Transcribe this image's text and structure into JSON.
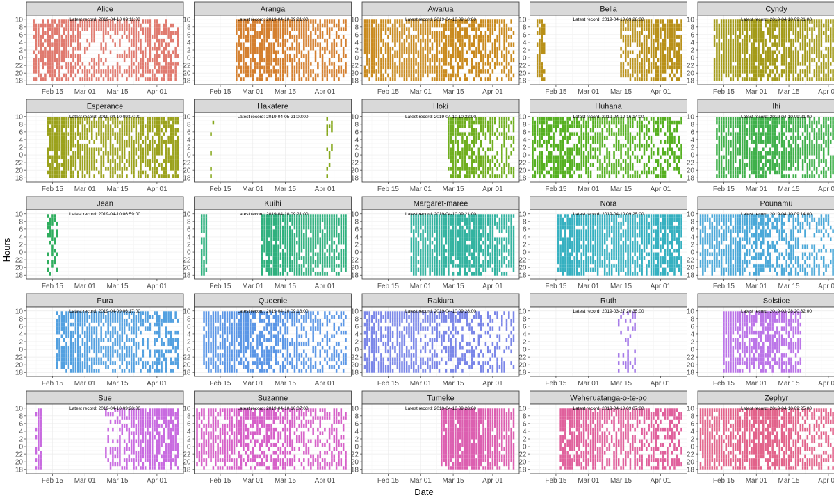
{
  "chart_data": {
    "type": "heatmap",
    "title": "",
    "xlabel": "Date",
    "ylabel": "Hours",
    "x_ticks": [
      "Feb 15",
      "Mar 01",
      "Mar 15",
      "Apr 01"
    ],
    "x_range": [
      "2019-02-05",
      "2019-04-11"
    ],
    "y_ticks": [
      "10",
      "8",
      "6",
      "4",
      "2",
      "0",
      "22",
      "20",
      "18"
    ],
    "y_range_hours_since_18": [
      -0.5,
      16.5
    ],
    "record_prefix": "Latest record: ",
    "birds": [
      {
        "name": "Alice",
        "latest": "2019-04-10 09:11:00",
        "color": "#e07a6f",
        "active": [
          [
            2,
            64
          ]
        ],
        "pattern": [
          [
            0,
            0.75
          ],
          [
            1,
            0.9
          ],
          [
            0,
            0.65
          ]
        ]
      },
      {
        "name": "Aranga",
        "latest": "2019-04-10 09:21:00",
        "color": "#d47f2e",
        "active": [
          [
            17,
            64
          ]
        ],
        "pattern": [
          [
            0.05,
            0.75
          ],
          [
            0.35,
            0.9
          ],
          [
            0.4,
            0.7
          ]
        ]
      },
      {
        "name": "Awarua",
        "latest": "2019-04-10 09:18:00",
        "color": "#c98a1e",
        "active": [
          [
            0,
            64
          ]
        ],
        "pattern": [
          [
            0.05,
            0.85
          ],
          [
            0.1,
            0.85
          ],
          [
            0.2,
            0.7
          ]
        ]
      },
      {
        "name": "Bella",
        "latest": "2019-04-10 09:28:00",
        "color": "#b89018",
        "active": [
          [
            2,
            5
          ],
          [
            38,
            64
          ]
        ],
        "pattern": [
          [
            0.4,
            0.9
          ],
          [
            0.2,
            0.9
          ],
          [
            0.1,
            0.85
          ]
        ]
      },
      {
        "name": "Cyndy",
        "latest": "2019-04-10 09:21:00",
        "color": "#a39a18",
        "active": [
          [
            6,
            64
          ]
        ],
        "pattern": [
          [
            0.1,
            0.9
          ],
          [
            0.15,
            0.85
          ],
          [
            0.2,
            0.75
          ]
        ]
      },
      {
        "name": "Esperance",
        "latest": "2019-04-10 09:04:00",
        "color": "#9ba21c",
        "active": [
          [
            8,
            64
          ]
        ],
        "pattern": [
          [
            0.1,
            0.9
          ],
          [
            0.15,
            0.85
          ],
          [
            0.1,
            0.8
          ]
        ]
      },
      {
        "name": "Hakatere",
        "latest": "2019-04-05 21:00:00",
        "color": "#86a81c",
        "active": [
          [
            6,
            7
          ],
          [
            56,
            58
          ]
        ],
        "pattern": [
          [
            0.6,
            0.5
          ],
          [
            0.6,
            0.5
          ],
          [
            0.6,
            0.5
          ]
        ]
      },
      {
        "name": "Hoki",
        "latest": "2019-04-10 10:32:00",
        "color": "#6fae1e",
        "active": [
          [
            36,
            64
          ]
        ],
        "pattern": [
          [
            0.25,
            0.85
          ],
          [
            0.55,
            0.85
          ],
          [
            0.6,
            0.7
          ]
        ]
      },
      {
        "name": "Huhana",
        "latest": "2019-04-10 16:14:00",
        "color": "#55b020",
        "active": [
          [
            0,
            64
          ]
        ],
        "pattern": [
          [
            0.1,
            0.75
          ],
          [
            0.35,
            0.8
          ],
          [
            0.4,
            0.7
          ]
        ]
      },
      {
        "name": "Ihi",
        "latest": "2019-04-10 09:21:00",
        "color": "#3fb04a",
        "active": [
          [
            7,
            64
          ]
        ],
        "pattern": [
          [
            0.1,
            0.9
          ],
          [
            0.15,
            0.85
          ],
          [
            0.25,
            0.7
          ]
        ]
      },
      {
        "name": "Jean",
        "latest": "2019-04-10 06:59:00",
        "color": "#2fae5e",
        "active": [
          [
            8,
            12
          ]
        ],
        "pattern": [
          [
            0.3,
            0.6
          ],
          [
            0.35,
            0.6
          ],
          [
            0.35,
            0.6
          ]
        ]
      },
      {
        "name": "Kuihi",
        "latest": "2019-04-10 09:21:00",
        "color": "#2fb07e",
        "active": [
          [
            2,
            4
          ],
          [
            28,
            64
          ]
        ],
        "pattern": [
          [
            0.1,
            0.95
          ],
          [
            0.1,
            0.9
          ],
          [
            0.15,
            0.85
          ]
        ]
      },
      {
        "name": "Margaret-maree",
        "latest": "2019-04-10 09:21:00",
        "color": "#33b3a0",
        "active": [
          [
            20,
            64
          ]
        ],
        "pattern": [
          [
            0.05,
            0.9
          ],
          [
            0.1,
            0.9
          ],
          [
            0.1,
            0.85
          ]
        ]
      },
      {
        "name": "Nora",
        "latest": "2019-04-10 09:25:00",
        "color": "#35b0c0",
        "active": [
          [
            11,
            64
          ]
        ],
        "pattern": [
          [
            0.05,
            0.9
          ],
          [
            0.1,
            0.85
          ],
          [
            0.1,
            0.85
          ]
        ]
      },
      {
        "name": "Pounamu",
        "latest": "2019-04-10 09:14:00",
        "color": "#4aa8d8",
        "active": [
          [
            0,
            64
          ]
        ],
        "pattern": [
          [
            0.1,
            0.8
          ],
          [
            0.4,
            0.7
          ],
          [
            0.6,
            0.55
          ]
        ]
      },
      {
        "name": "Pura",
        "latest": "2019-04-09 06:17:00",
        "color": "#52a0e0",
        "active": [
          [
            12,
            64
          ]
        ],
        "pattern": [
          [
            0.15,
            0.85
          ],
          [
            0.2,
            0.75
          ],
          [
            0.45,
            0.6
          ]
        ]
      },
      {
        "name": "Queenie",
        "latest": "2019-04-10 09:18:00",
        "color": "#5a96e6",
        "active": [
          [
            3,
            64
          ]
        ],
        "pattern": [
          [
            0.1,
            0.85
          ],
          [
            0.3,
            0.75
          ],
          [
            0.55,
            0.6
          ]
        ]
      },
      {
        "name": "Rakiura",
        "latest": "2019-04-10 09:28:00",
        "color": "#7a86e8",
        "active": [
          [
            0,
            64
          ]
        ],
        "pattern": [
          [
            0.2,
            0.75
          ],
          [
            0.45,
            0.65
          ],
          [
            0.65,
            0.55
          ]
        ]
      },
      {
        "name": "Ruth",
        "latest": "2019-03-27 20:35:00",
        "color": "#a57ae8",
        "active": [
          [
            37,
            44
          ]
        ],
        "pattern": [
          [
            0.6,
            0.55
          ],
          [
            0.6,
            0.5
          ],
          [
            0.6,
            0.5
          ]
        ]
      },
      {
        "name": "Solstice",
        "latest": "2019-03-28 20:32:00",
        "color": "#bb74e8",
        "active": [
          [
            10,
            43
          ]
        ],
        "pattern": [
          [
            0.1,
            0.9
          ],
          [
            0.15,
            0.85
          ],
          [
            0.2,
            0.8
          ]
        ]
      },
      {
        "name": "Sue",
        "latest": "2019-04-10 09:28:00",
        "color": "#c86ae0",
        "active": [
          [
            3,
            5
          ],
          [
            33,
            64
          ]
        ],
        "pattern": [
          [
            0.5,
            0.6
          ],
          [
            0.1,
            0.9
          ],
          [
            0.15,
            0.85
          ]
        ]
      },
      {
        "name": "Suzanne",
        "latest": "2019-04-10 10:07:00",
        "color": "#d660c8",
        "active": [
          [
            0,
            64
          ]
        ],
        "pattern": [
          [
            0.1,
            0.8
          ],
          [
            0.35,
            0.75
          ],
          [
            0.55,
            0.65
          ]
        ]
      },
      {
        "name": "Tumeke",
        "latest": "2019-04-10 09:28:00",
        "color": "#dc5fb0",
        "active": [
          [
            33,
            64
          ]
        ],
        "pattern": [
          [
            0.05,
            0.95
          ],
          [
            0.05,
            0.9
          ],
          [
            0.1,
            0.85
          ]
        ]
      },
      {
        "name": "Weheruatanga-o-te-po",
        "latest": "2019-04-10 09:07:00",
        "color": "#e0609c",
        "active": [
          [
            12,
            64
          ]
        ],
        "pattern": [
          [
            0.1,
            0.85
          ],
          [
            0.3,
            0.8
          ],
          [
            0.5,
            0.65
          ]
        ]
      },
      {
        "name": "Zephyr",
        "latest": "2019-04-10 09:25:00",
        "color": "#e2628a",
        "active": [
          [
            0,
            64
          ]
        ],
        "pattern": [
          [
            0.05,
            0.85
          ],
          [
            0.15,
            0.85
          ],
          [
            0.45,
            0.65
          ]
        ]
      }
    ]
  }
}
